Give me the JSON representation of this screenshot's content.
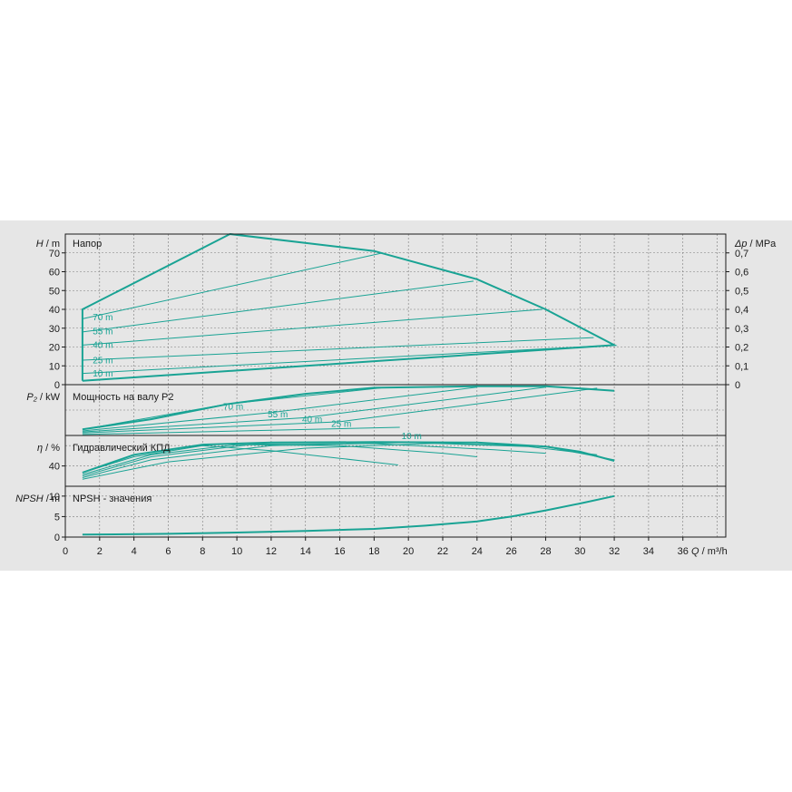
{
  "chart_data": {
    "type": "line",
    "x_axis": {
      "label_symbol": "Q",
      "label_unit": "/ m³/h",
      "range": [
        0,
        38.5
      ],
      "ticks": [
        "0",
        "2",
        "4",
        "6",
        "8",
        "10",
        "12",
        "14",
        "16",
        "18",
        "20",
        "22",
        "24",
        "26",
        "28",
        "30",
        "32",
        "34",
        "36"
      ]
    },
    "panels": {
      "head": {
        "title": "Напор",
        "ylabel_symbol": "H",
        "ylabel_unit": "/ m",
        "ylim": [
          0,
          80
        ],
        "yticks": [
          "0",
          "10",
          "20",
          "30",
          "40",
          "50",
          "60",
          "70"
        ],
        "right_axis": {
          "label_symbol": "Δp",
          "label_unit": "/ MPa",
          "ylim": [
            0,
            0.8
          ],
          "ticks": [
            "0",
            "0,1",
            "0,2",
            "0,3",
            "0,4",
            "0,5",
            "0,6",
            "0,7"
          ]
        },
        "envelope": {
          "x": [
            1,
            1,
            9.6,
            18,
            24,
            28,
            32,
            32,
            1
          ],
          "y": [
            2,
            40,
            80,
            71,
            56,
            40,
            21,
            21,
            2
          ]
        },
        "series": [
          {
            "name": "70 m",
            "label_x": 1.6,
            "x": [
              1,
              18.5
            ],
            "y": [
              35,
              70
            ]
          },
          {
            "name": "55 m",
            "label_x": 1.6,
            "x": [
              1,
              23.8
            ],
            "y": [
              28,
              55
            ]
          },
          {
            "name": "40 m",
            "label_x": 1.6,
            "x": [
              1,
              27.8
            ],
            "y": [
              21,
              40
            ]
          },
          {
            "name": "25 m",
            "label_x": 1.6,
            "x": [
              1,
              30.8
            ],
            "y": [
              13,
              25
            ]
          },
          {
            "name": "10 m",
            "label_x": 1.6,
            "x": [
              1,
              32
            ],
            "y": [
              6,
              21
            ]
          }
        ]
      },
      "power": {
        "title": "Мощность на валу P2",
        "ylabel_symbol": "P₂",
        "ylabel_unit": "/ kW",
        "ylim": [
          0,
          1
        ],
        "yticks": [],
        "envelope": {
          "x": [
            1,
            5,
            9.5,
            14,
            18,
            24,
            28,
            32
          ],
          "y": [
            0.12,
            0.32,
            0.62,
            0.82,
            0.94,
            0.97,
            0.97,
            0.88
          ]
        },
        "series": [
          {
            "name": "70 m",
            "label_x": 9.2,
            "x": [
              1,
              9.5,
              18.5
            ],
            "y": [
              0.12,
              0.62,
              0.94
            ]
          },
          {
            "name": "55 m",
            "label_x": 11.8,
            "x": [
              1,
              12,
              24
            ],
            "y": [
              0.09,
              0.45,
              0.95
            ]
          },
          {
            "name": "40 m",
            "label_x": 13.8,
            "x": [
              1,
              14,
              28
            ],
            "y": [
              0.07,
              0.35,
              0.95
            ]
          },
          {
            "name": "25 m",
            "label_x": 15.5,
            "x": [
              1,
              16,
              31
            ],
            "y": [
              0.05,
              0.27,
              0.93
            ]
          },
          {
            "name": "10 m",
            "label_x": 19.6,
            "x": [
              1,
              19.5
            ],
            "y": [
              0.02,
              0.16
            ]
          }
        ]
      },
      "efficiency": {
        "title": "Гидравлический КПД",
        "ylabel_symbol": "η",
        "ylabel_unit": "/ %",
        "ylim": [
          0,
          100
        ],
        "yticks": [
          "40"
        ],
        "series": [
          {
            "name": "70 m",
            "x": [
              1,
              4,
              8,
              12,
              16,
              19.4
            ],
            "y": [
              27,
              58,
              80,
              70,
              55,
              42
            ]
          },
          {
            "name": "55 m",
            "x": [
              1,
              5,
              10,
              16,
              22,
              24
            ],
            "y": [
              23,
              62,
              82,
              80,
              65,
              58
            ]
          },
          {
            "name": "40 m",
            "x": [
              1,
              5,
              11,
              18,
              25,
              28
            ],
            "y": [
              20,
              58,
              83,
              84,
              72,
              65
            ]
          },
          {
            "name": "25 m",
            "x": [
              1,
              5,
              12,
              20,
              27,
              31
            ],
            "y": [
              17,
              52,
              80,
              86,
              78,
              62
            ]
          },
          {
            "name": "10 m",
            "x": [
              1,
              6,
              14,
              22,
              28,
              32
            ],
            "y": [
              14,
              48,
              75,
              85,
              78,
              52
            ]
          }
        ],
        "envelope": {
          "x": [
            1,
            4,
            8,
            12,
            18,
            24,
            28,
            30,
            32
          ],
          "y": [
            27,
            62,
            82,
            86,
            87,
            86,
            78,
            68,
            50
          ]
        }
      },
      "npsh": {
        "title": "NPSH - значения",
        "ylabel_symbol": "NPSH",
        "ylabel_unit": "/ m",
        "ylim": [
          0,
          12.4
        ],
        "yticks": [
          "0",
          "5",
          "10"
        ],
        "series": [
          {
            "name": "NPSH",
            "x": [
              1,
              6,
              10,
              14,
              18,
              21,
              24,
              26,
              28,
              30,
              32
            ],
            "y": [
              0.6,
              0.8,
              1.1,
              1.5,
              2.0,
              2.8,
              3.8,
              5.0,
              6.5,
              8.2,
              10.0
            ]
          }
        ]
      }
    }
  }
}
